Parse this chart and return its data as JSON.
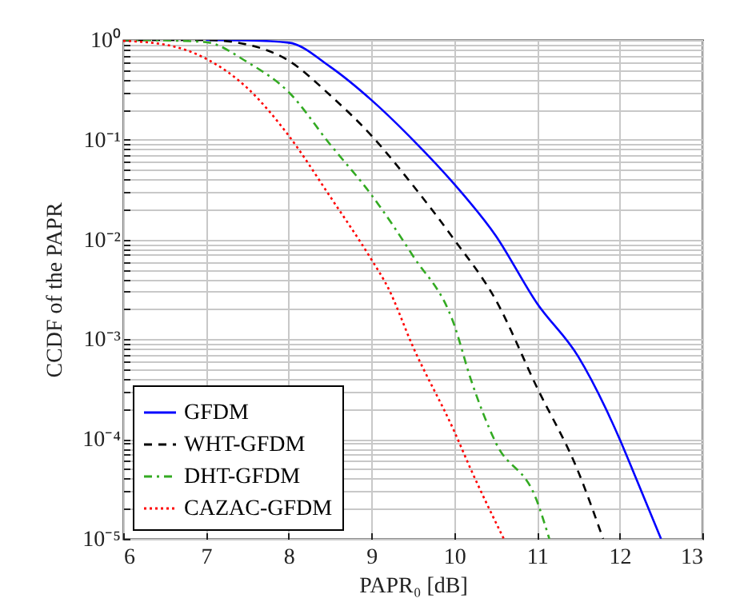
{
  "chart_data": {
    "type": "line",
    "xlabel": "PAPR₀ [dB]",
    "ylabel": "CCDF of the PAPR",
    "log": "y",
    "grid": true,
    "legend": "bottom left",
    "xlim": [
      6,
      13
    ],
    "xticks": [
      6,
      7,
      8,
      9,
      10,
      11,
      12,
      13
    ],
    "ylim": [
      1e-05,
      1
    ],
    "yticks": [
      {
        "value": 1e-05,
        "label": "10⁻⁵"
      },
      {
        "value": 2e-05,
        "label": null
      },
      {
        "value": 3e-05,
        "label": null
      },
      {
        "value": 4e-05,
        "label": null
      },
      {
        "value": 5e-05,
        "label": null
      },
      {
        "value": 6e-05,
        "label": null
      },
      {
        "value": 7e-05,
        "label": null
      },
      {
        "value": 8e-05,
        "label": null
      },
      {
        "value": 9e-05,
        "label": null
      },
      {
        "value": 0.0001,
        "label": "10⁻⁴"
      },
      {
        "value": 0.0002,
        "label": null
      },
      {
        "value": 0.0003,
        "label": null
      },
      {
        "value": 0.0004,
        "label": null
      },
      {
        "value": 0.0005,
        "label": null
      },
      {
        "value": 0.0006,
        "label": null
      },
      {
        "value": 0.0007,
        "label": null
      },
      {
        "value": 0.0008,
        "label": null
      },
      {
        "value": 0.0009,
        "label": null
      },
      {
        "value": 0.001,
        "label": "10⁻³"
      },
      {
        "value": 0.002,
        "label": null
      },
      {
        "value": 0.003,
        "label": null
      },
      {
        "value": 0.004,
        "label": null
      },
      {
        "value": 0.005,
        "label": null
      },
      {
        "value": 0.006,
        "label": null
      },
      {
        "value": 0.007,
        "label": null
      },
      {
        "value": 0.008,
        "label": null
      },
      {
        "value": 0.009,
        "label": null
      },
      {
        "value": 0.01,
        "label": "10⁻²"
      },
      {
        "value": 0.02,
        "label": null
      },
      {
        "value": 0.03,
        "label": null
      },
      {
        "value": 0.04,
        "label": null
      },
      {
        "value": 0.05,
        "label": null
      },
      {
        "value": 0.06,
        "label": null
      },
      {
        "value": 0.07,
        "label": null
      },
      {
        "value": 0.08,
        "label": null
      },
      {
        "value": 0.09,
        "label": null
      },
      {
        "value": 0.1,
        "label": "10⁻¹"
      },
      {
        "value": 0.2,
        "label": null
      },
      {
        "value": 0.3,
        "label": null
      },
      {
        "value": 0.4,
        "label": null
      },
      {
        "value": 0.5,
        "label": null
      },
      {
        "value": 0.6,
        "label": null
      },
      {
        "value": 0.7,
        "label": null
      },
      {
        "value": 0.8,
        "label": null
      },
      {
        "value": 0.9,
        "label": null
      },
      {
        "value": 1,
        "label": "10⁰"
      }
    ],
    "series": [
      {
        "name": "GFDM",
        "color": "#0000ff",
        "line_style": "solid",
        "x": [
          7,
          7.5,
          8,
          8.5,
          9,
          9.5,
          10,
          10.5,
          11,
          11.5,
          12,
          12.2,
          12.5
        ],
        "values": [
          1,
          0.99,
          0.94,
          0.54,
          0.25,
          0.1,
          0.036,
          0.011,
          0.0023,
          0.00067,
          0.0001,
          4e-05,
          1e-05
        ]
      },
      {
        "name": "WHT-GFDM",
        "color": "#000000",
        "line_style": "dashed",
        "x": [
          6,
          7,
          7.5,
          8,
          8.5,
          9,
          9.5,
          10,
          10.5,
          11,
          11.5,
          11.8
        ],
        "values": [
          1,
          1,
          0.9,
          0.62,
          0.28,
          0.11,
          0.035,
          0.01,
          0.0025,
          0.00033,
          4.7e-05,
          1e-05
        ]
      },
      {
        "name": "DHT-GFDM",
        "color": "#33aa22",
        "line_style": "dashdot",
        "x": [
          6,
          6.5,
          7,
          7.5,
          8,
          8.5,
          9,
          9.5,
          10,
          10.2,
          10.5,
          11,
          11.15
        ],
        "values": [
          1,
          0.99,
          0.95,
          0.6,
          0.3,
          0.09,
          0.028,
          0.0069,
          0.0014,
          0.0004,
          9.3e-05,
          2.4e-05,
          1e-05
        ]
      },
      {
        "name": "CAZAC-GFDM",
        "color": "#ff0000",
        "line_style": "dotted",
        "x": [
          6,
          6.5,
          7,
          7.5,
          8,
          8.5,
          9,
          9.2,
          9.5,
          10,
          10.2,
          10.6
        ],
        "values": [
          0.98,
          0.9,
          0.65,
          0.33,
          0.11,
          0.027,
          0.0063,
          0.0033,
          0.00085,
          0.00012,
          5e-05,
          1e-05
        ]
      }
    ]
  }
}
